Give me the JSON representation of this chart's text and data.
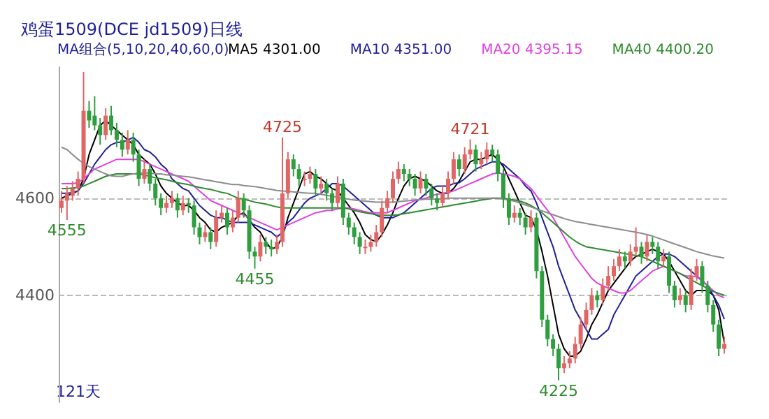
{
  "chart_data": {
    "type": "candlestick",
    "title": "鸡蛋1509(DCE jd1509)日线",
    "annotations": [
      "MA组合(5,10,20,40,60,0)",
      "121天",
      {
        "text": "4725",
        "y": 4725
      },
      {
        "text": "4721",
        "y": 4721
      },
      {
        "text": "4555",
        "y": 4555
      },
      {
        "text": "4455",
        "y": 4455
      },
      {
        "text": "4225",
        "y": 4225
      }
    ],
    "categories": [
      null,
      null,
      null,
      null,
      null,
      null,
      null,
      null,
      null,
      null,
      null,
      null,
      null,
      null,
      null,
      null,
      null,
      null,
      null,
      null,
      null,
      null,
      null,
      null,
      null,
      null,
      null,
      null,
      null,
      null,
      null,
      null,
      null,
      null,
      null,
      null,
      null,
      null,
      null,
      null,
      null,
      null,
      null,
      null,
      null,
      null,
      null,
      null,
      null,
      null,
      null,
      null,
      null,
      null,
      null,
      null,
      null,
      null,
      null,
      null,
      null,
      null,
      null,
      null,
      null,
      null,
      null,
      null,
      null,
      null,
      null,
      null,
      null,
      null,
      null,
      null,
      null,
      null,
      null,
      null,
      null,
      null,
      null,
      null,
      null,
      null,
      null,
      null,
      null,
      null,
      null,
      null,
      null,
      null,
      null,
      null,
      null,
      null,
      null,
      null,
      null,
      null,
      null,
      null,
      null,
      null,
      null,
      null,
      null,
      null,
      null,
      null,
      null,
      null,
      null,
      null,
      null,
      null,
      null,
      null,
      null
    ],
    "ohlc": [
      [
        4580,
        4615,
        4570,
        4595
      ],
      [
        4595,
        4625,
        4555,
        4610
      ],
      [
        4605,
        4635,
        4595,
        4620
      ],
      [
        4620,
        4655,
        4605,
        4640
      ],
      [
        4640,
        4860,
        4630,
        4780
      ],
      [
        4780,
        4800,
        4745,
        4760
      ],
      [
        4770,
        4810,
        4740,
        4750
      ],
      [
        4750,
        4765,
        4710,
        4730
      ],
      [
        4730,
        4785,
        4720,
        4770
      ],
      [
        4770,
        4790,
        4730,
        4740
      ],
      [
        4740,
        4755,
        4705,
        4720
      ],
      [
        4720,
        4735,
        4685,
        4700
      ],
      [
        4700,
        4740,
        4690,
        4720
      ],
      [
        4720,
        4735,
        4675,
        4690
      ],
      [
        4690,
        4700,
        4625,
        4640
      ],
      [
        4640,
        4680,
        4630,
        4660
      ],
      [
        4660,
        4670,
        4615,
        4630
      ],
      [
        4630,
        4640,
        4585,
        4600
      ],
      [
        4600,
        4610,
        4565,
        4580
      ],
      [
        4580,
        4605,
        4570,
        4590
      ],
      [
        4590,
        4615,
        4580,
        4600
      ],
      [
        4600,
        4610,
        4560,
        4575
      ],
      [
        4575,
        4605,
        4565,
        4590
      ],
      [
        4590,
        4600,
        4570,
        4585
      ],
      [
        4585,
        4595,
        4525,
        4540
      ],
      [
        4540,
        4550,
        4505,
        4520
      ],
      [
        4520,
        4545,
        4510,
        4530
      ],
      [
        4530,
        4540,
        4495,
        4510
      ],
      [
        4510,
        4575,
        4500,
        4560
      ],
      [
        4560,
        4585,
        4550,
        4570
      ],
      [
        4570,
        4580,
        4525,
        4540
      ],
      [
        4540,
        4575,
        4530,
        4560
      ],
      [
        4560,
        4615,
        4550,
        4600
      ],
      [
        4600,
        4610,
        4560,
        4575
      ],
      [
        4575,
        4585,
        4475,
        4490
      ],
      [
        4490,
        4500,
        4455,
        4480
      ],
      [
        4480,
        4525,
        4470,
        4510
      ],
      [
        4510,
        4520,
        4485,
        4500
      ],
      [
        4500,
        4515,
        4480,
        4495
      ],
      [
        4495,
        4525,
        4485,
        4510
      ],
      [
        4510,
        4725,
        4500,
        4610
      ],
      [
        4610,
        4695,
        4600,
        4680
      ],
      [
        4680,
        4690,
        4645,
        4660
      ],
      [
        4660,
        4670,
        4625,
        4640
      ],
      [
        4640,
        4655,
        4625,
        4640
      ],
      [
        4640,
        4665,
        4630,
        4650
      ],
      [
        4650,
        4660,
        4605,
        4620
      ],
      [
        4620,
        4645,
        4610,
        4630
      ],
      [
        4630,
        4640,
        4595,
        4610
      ],
      [
        4610,
        4620,
        4575,
        4590
      ],
      [
        4590,
        4645,
        4580,
        4630
      ],
      [
        4630,
        4640,
        4545,
        4560
      ],
      [
        4560,
        4570,
        4525,
        4540
      ],
      [
        4540,
        4550,
        4505,
        4520
      ],
      [
        4520,
        4530,
        4485,
        4500
      ],
      [
        4500,
        4515,
        4485,
        4500
      ],
      [
        4500,
        4525,
        4490,
        4510
      ],
      [
        4510,
        4545,
        4500,
        4530
      ],
      [
        4530,
        4595,
        4520,
        4580
      ],
      [
        4580,
        4615,
        4570,
        4600
      ],
      [
        4600,
        4655,
        4590,
        4640
      ],
      [
        4640,
        4675,
        4630,
        4660
      ],
      [
        4660,
        4670,
        4635,
        4650
      ],
      [
        4650,
        4660,
        4625,
        4640
      ],
      [
        4640,
        4650,
        4605,
        4620
      ],
      [
        4620,
        4655,
        4610,
        4640
      ],
      [
        4640,
        4650,
        4605,
        4620
      ],
      [
        4620,
        4630,
        4585,
        4600
      ],
      [
        4600,
        4610,
        4575,
        4590
      ],
      [
        4590,
        4625,
        4580,
        4610
      ],
      [
        4610,
        4655,
        4600,
        4640
      ],
      [
        4640,
        4695,
        4630,
        4680
      ],
      [
        4680,
        4690,
        4645,
        4660
      ],
      [
        4660,
        4705,
        4650,
        4690
      ],
      [
        4690,
        4721,
        4680,
        4700
      ],
      [
        4700,
        4710,
        4655,
        4670
      ],
      [
        4670,
        4695,
        4660,
        4680
      ],
      [
        4680,
        4715,
        4670,
        4700
      ],
      [
        4700,
        4710,
        4675,
        4690
      ],
      [
        4690,
        4700,
        4635,
        4650
      ],
      [
        4650,
        4660,
        4580,
        4600
      ],
      [
        4600,
        4610,
        4545,
        4560
      ],
      [
        4560,
        4585,
        4550,
        4570
      ],
      [
        4570,
        4580,
        4545,
        4560
      ],
      [
        4560,
        4570,
        4525,
        4540
      ],
      [
        4540,
        4575,
        4530,
        4560
      ],
      [
        4560,
        4570,
        4435,
        4450
      ],
      [
        4450,
        4460,
        4335,
        4350
      ],
      [
        4350,
        4360,
        4295,
        4310
      ],
      [
        4310,
        4320,
        4275,
        4290
      ],
      [
        4290,
        4300,
        4225,
        4250
      ],
      [
        4250,
        4275,
        4240,
        4260
      ],
      [
        4260,
        4285,
        4250,
        4270
      ],
      [
        4270,
        4315,
        4260,
        4300
      ],
      [
        4300,
        4355,
        4290,
        4340
      ],
      [
        4340,
        4385,
        4330,
        4370
      ],
      [
        4370,
        4415,
        4360,
        4400
      ],
      [
        4400,
        4410,
        4375,
        4390
      ],
      [
        4390,
        4435,
        4380,
        4420
      ],
      [
        4420,
        4460,
        4410,
        4440
      ],
      [
        4440,
        4475,
        4430,
        4460
      ],
      [
        4460,
        4495,
        4450,
        4480
      ],
      [
        4480,
        4490,
        4455,
        4470
      ],
      [
        4470,
        4505,
        4460,
        4490
      ],
      [
        4490,
        4540,
        4480,
        4500
      ],
      [
        4500,
        4510,
        4465,
        4480
      ],
      [
        4480,
        4525,
        4470,
        4510
      ],
      [
        4510,
        4520,
        4485,
        4500
      ],
      [
        4500,
        4510,
        4455,
        4470
      ],
      [
        4470,
        4495,
        4460,
        4480
      ],
      [
        4480,
        4490,
        4405,
        4420
      ],
      [
        4420,
        4430,
        4375,
        4390
      ],
      [
        4390,
        4415,
        4380,
        4400
      ],
      [
        4400,
        4410,
        4365,
        4380
      ],
      [
        4380,
        4455,
        4370,
        4440
      ],
      [
        4440,
        4475,
        4430,
        4460
      ],
      [
        4460,
        4470,
        4405,
        4420
      ],
      [
        4420,
        4430,
        4365,
        4380
      ],
      [
        4380,
        4390,
        4325,
        4340
      ],
      [
        4340,
        4350,
        4275,
        4290
      ],
      [
        4290,
        4315,
        4280,
        4300
      ]
    ],
    "series": [
      {
        "type": "line",
        "name": "MA5 4301.00",
        "color": "#000000",
        "values": [
          4600,
          4605,
          4610,
          4615,
          4640,
          4690,
          4720,
          4750,
          4760,
          4750,
          4740,
          4730,
          4720,
          4710,
          4690,
          4680,
          4670,
          4650,
          4625,
          4610,
          4600,
          4590,
          4585,
          4585,
          4575,
          4560,
          4550,
          4535,
          4530,
          4540,
          4545,
          4550,
          4565,
          4570,
          4555,
          4540,
          4530,
          4510,
          4495,
          4500,
          4520,
          4560,
          4590,
          4620,
          4650,
          4655,
          4645,
          4640,
          4630,
          4620,
          4615,
          4600,
          4585,
          4570,
          4550,
          4525,
          4515,
          4510,
          4525,
          4545,
          4570,
          4600,
          4625,
          4640,
          4645,
          4640,
          4635,
          4625,
          4615,
          4610,
          4610,
          4620,
          4635,
          4655,
          4675,
          4680,
          4680,
          4685,
          4690,
          4680,
          4665,
          4640,
          4615,
          4590,
          4565,
          4560,
          4535,
          4490,
          4440,
          4380,
          4320,
          4290,
          4275,
          4275,
          4285,
          4310,
          4340,
          4360,
          4385,
          4410,
          4425,
          4440,
          4455,
          4470,
          4480,
          4485,
          4490,
          4495,
          4490,
          4485,
          4470,
          4450,
          4430,
          4410,
          4400,
          4410,
          4410,
          4410,
          4400,
          4370,
          4301
        ]
      },
      {
        "type": "line",
        "name": "MA10 4351.00",
        "color": "#1f1f99",
        "values": [
          4610,
          4610,
          4612,
          4615,
          4630,
          4650,
          4670,
          4685,
          4700,
          4710,
          4715,
          4715,
          4720,
          4725,
          4715,
          4700,
          4695,
          4685,
          4670,
          4660,
          4640,
          4630,
          4620,
          4615,
          4600,
          4585,
          4575,
          4565,
          4560,
          4560,
          4555,
          4550,
          4550,
          4550,
          4550,
          4545,
          4540,
          4535,
          4530,
          4520,
          4530,
          4550,
          4560,
          4575,
          4590,
          4600,
          4605,
          4610,
          4620,
          4630,
          4630,
          4625,
          4615,
          4605,
          4595,
          4585,
          4575,
          4565,
          4560,
          4560,
          4560,
          4565,
          4570,
          4580,
          4590,
          4600,
          4610,
          4620,
          4625,
          4625,
          4625,
          4630,
          4632,
          4640,
          4650,
          4660,
          4665,
          4670,
          4675,
          4675,
          4670,
          4660,
          4650,
          4640,
          4625,
          4615,
          4590,
          4560,
          4530,
          4500,
          4460,
          4430,
          4400,
          4370,
          4350,
          4330,
          4310,
          4310,
          4320,
          4330,
          4360,
          4380,
          4400,
          4420,
          4440,
          4450,
          4460,
          4470,
          4480,
          4485,
          4485,
          4480,
          4470,
          4460,
          4450,
          4440,
          4430,
          4420,
          4400,
          4380,
          4351
        ]
      },
      {
        "type": "line",
        "name": "MA20 4395.15",
        "color": "#e040e0",
        "values": [
          4630,
          4630,
          4630,
          4632,
          4640,
          4650,
          4660,
          4665,
          4670,
          4675,
          4680,
          4680,
          4680,
          4680,
          4680,
          4675,
          4670,
          4665,
          4660,
          4655,
          4650,
          4645,
          4640,
          4635,
          4625,
          4615,
          4605,
          4595,
          4590,
          4585,
          4580,
          4575,
          4570,
          4565,
          4560,
          4555,
          4550,
          4545,
          4540,
          4535,
          4540,
          4545,
          4550,
          4555,
          4560,
          4565,
          4570,
          4572,
          4575,
          4575,
          4578,
          4580,
          4580,
          4578,
          4575,
          4572,
          4570,
          4570,
          4570,
          4570,
          4575,
          4580,
          4585,
          4590,
          4595,
          4598,
          4600,
          4605,
          4608,
          4610,
          4612,
          4615,
          4620,
          4625,
          4630,
          4635,
          4640,
          4645,
          4650,
          4652,
          4650,
          4648,
          4645,
          4640,
          4630,
          4620,
          4605,
          4590,
          4575,
          4560,
          4540,
          4520,
          4500,
          4480,
          4465,
          4450,
          4435,
          4425,
          4420,
          4415,
          4410,
          4405,
          4405,
          4410,
          4420,
          4430,
          4440,
          4450,
          4455,
          4460,
          4455,
          4450,
          4445,
          4440,
          4440,
          4438,
          4430,
          4420,
          4410,
          4400,
          4395.15
        ]
      },
      {
        "type": "line",
        "name": "MA40 4400.20",
        "color": "#2e8b2e",
        "values": [
          4620,
          4620,
          4621,
          4622,
          4625,
          4630,
          4635,
          4640,
          4645,
          4648,
          4650,
          4650,
          4650,
          4650,
          4650,
          4648,
          4645,
          4642,
          4640,
          4638,
          4635,
          4632,
          4630,
          4628,
          4625,
          4622,
          4620,
          4618,
          4615,
          4612,
          4610,
          4605,
          4600,
          4598,
          4595,
          4592,
          4590,
          4588,
          4585,
          4582,
          4580,
          4580,
          4580,
          4580,
          4580,
          4580,
          4580,
          4580,
          4580,
          4580,
          4580,
          4580,
          4578,
          4575,
          4572,
          4570,
          4568,
          4566,
          4565,
          4565,
          4565,
          4566,
          4568,
          4570,
          4572,
          4574,
          4576,
          4578,
          4580,
          4582,
          4584,
          4586,
          4588,
          4590,
          4592,
          4594,
          4596,
          4598,
          4600,
          4600,
          4600,
          4598,
          4596,
          4594,
          4590,
          4585,
          4578,
          4570,
          4560,
          4550,
          4540,
          4530,
          4520,
          4512,
          4505,
          4500,
          4498,
          4496,
          4494,
          4492,
          4490,
          4488,
          4486,
          4484,
          4482,
          4480,
          4475,
          4470,
          4465,
          4460,
          4455,
          4450,
          4445,
          4438,
          4432,
          4426,
          4420,
          4414,
          4408,
          4404,
          4400.2
        ]
      },
      {
        "type": "line",
        "color": "#8c8c8c",
        "values": [
          4705,
          4700,
          4690,
          4680,
          4672,
          4665,
          4660,
          4655,
          4650,
          4646,
          4645,
          4645,
          4648,
          4650,
          4652,
          4652,
          4652,
          4650,
          4650,
          4648,
          4648,
          4646,
          4645,
          4644,
          4642,
          4640,
          4638,
          4636,
          4634,
          4632,
          4630,
          4628,
          4628,
          4626,
          4625,
          4624,
          4622,
          4620,
          4618,
          4616,
          4615,
          4614,
          4613,
          4612,
          4611,
          4610,
          4610,
          4608,
          4606,
          4604,
          4602,
          4600,
          4598,
          4596,
          4595,
          4594,
          4593,
          4592,
          4592,
          4592,
          4592,
          4593,
          4594,
          4595,
          4596,
          4597,
          4598,
          4598,
          4598,
          4599,
          4600,
          4600,
          4600,
          4600,
          4600,
          4600,
          4600,
          4600,
          4600,
          4600,
          4598,
          4596,
          4594,
          4590,
          4586,
          4582,
          4578,
          4574,
          4570,
          4566,
          4562,
          4558,
          4555,
          4552,
          4550,
          4548,
          4546,
          4544,
          4542,
          4540,
          4538,
          4536,
          4534,
          4532,
          4530,
          4528,
          4525,
          4522,
          4518,
          4514,
          4510,
          4506,
          4502,
          4498,
          4494,
          4490,
          4487,
          4484,
          4481,
          4479,
          4477
        ]
      }
    ],
    "ylim": [
      4180,
      4870
    ],
    "yticks": [
      4400,
      4600
    ],
    "grid": "y",
    "tick_labels": "y",
    "legend": "top",
    "marker": "none",
    "line_style": "solid"
  }
}
